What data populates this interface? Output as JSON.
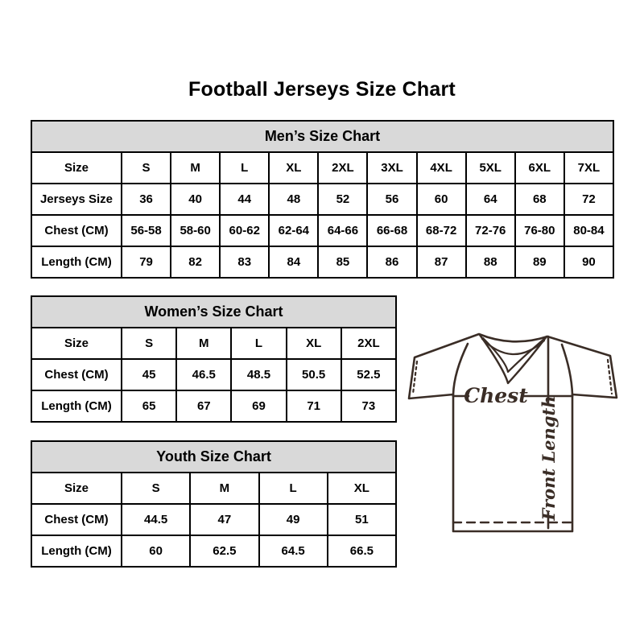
{
  "page_title": "Football Jerseys Size Chart",
  "colors": {
    "table_header_bg": "#d9d9d9",
    "table_border": "#000000",
    "diagram_line": "#3a2d26",
    "background": "#ffffff"
  },
  "tables": {
    "men": {
      "header": "Men’s Size Chart",
      "rows": [
        [
          "Size",
          "S",
          "M",
          "L",
          "XL",
          "2XL",
          "3XL",
          "4XL",
          "5XL",
          "6XL",
          "7XL"
        ],
        [
          "Jerseys Size",
          "36",
          "40",
          "44",
          "48",
          "52",
          "56",
          "60",
          "64",
          "68",
          "72"
        ],
        [
          "Chest (CM)",
          "56-58",
          "58-60",
          "60-62",
          "62-64",
          "64-66",
          "66-68",
          "68-72",
          "72-76",
          "76-80",
          "80-84"
        ],
        [
          "Length (CM)",
          "79",
          "82",
          "83",
          "84",
          "85",
          "86",
          "87",
          "88",
          "89",
          "90"
        ]
      ]
    },
    "women": {
      "header": "Women’s Size Chart",
      "rows": [
        [
          "Size",
          "S",
          "M",
          "L",
          "XL",
          "2XL"
        ],
        [
          "Chest (CM)",
          "45",
          "46.5",
          "48.5",
          "50.5",
          "52.5"
        ],
        [
          "Length (CM)",
          "65",
          "67",
          "69",
          "71",
          "73"
        ]
      ]
    },
    "youth": {
      "header": "Youth Size Chart",
      "rows": [
        [
          "Size",
          "S",
          "M",
          "L",
          "XL"
        ],
        [
          "Chest (CM)",
          "44.5",
          "47",
          "49",
          "51"
        ],
        [
          "Length (CM)",
          "60",
          "62.5",
          "64.5",
          "66.5"
        ]
      ]
    }
  },
  "diagram": {
    "chest_label": "Chest",
    "front_length_label": "Front Length"
  }
}
